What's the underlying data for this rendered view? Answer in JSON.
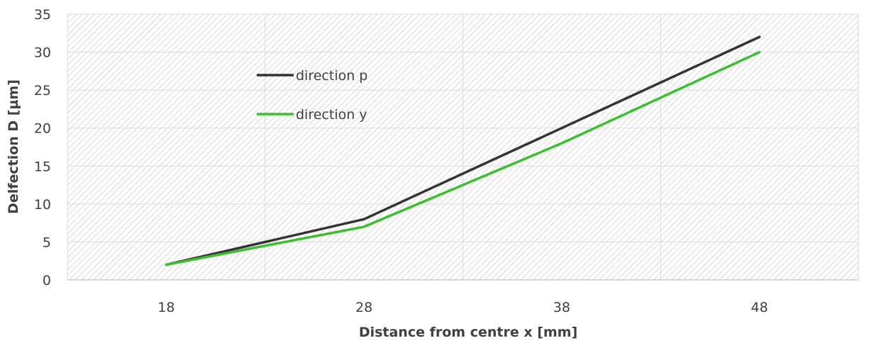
{
  "chart_data": {
    "type": "line",
    "title": "",
    "xlabel": "Distance from centre x [mm]",
    "ylabel": "Delfection D [µm]",
    "categories": [
      "18",
      "28",
      "38",
      "48"
    ],
    "x": [
      18,
      28,
      38,
      48
    ],
    "ylim": [
      0,
      35
    ],
    "yticks": [
      "0",
      "5",
      "10",
      "15",
      "20",
      "25",
      "30",
      "35"
    ],
    "grid": true,
    "legend_position": "inside-upper-left",
    "series": [
      {
        "name": "direction p",
        "values": [
          2,
          8,
          20,
          32
        ],
        "color": "#333333"
      },
      {
        "name": "direction y",
        "values": [
          2,
          7,
          18,
          30
        ],
        "color": "#3cbf2f"
      }
    ]
  }
}
